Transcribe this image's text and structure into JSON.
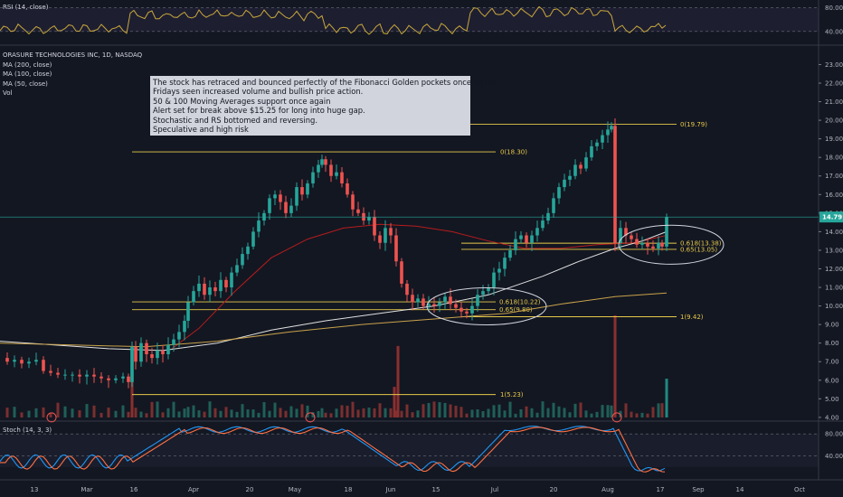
{
  "rsi_panel": {
    "label": "RSI (14, close)",
    "ticks": [
      80.0,
      40.0
    ]
  },
  "main_panel": {
    "title": "ORASURE TECHNOLOGIES INC, 1D, NASDAQ",
    "indicators": [
      "MA (200, close)",
      "MA (100, close)",
      "MA (50, close)",
      "Vol"
    ],
    "last_price_label": "14.79",
    "colors": {
      "up": "#26a69a",
      "down": "#ef5350",
      "level": "#e6c84a",
      "ma50": "#b71c1c",
      "ma100": "#e0e0e0",
      "ma200": "#c8a24a"
    }
  },
  "annotation": {
    "lines": [
      "The stock has retraced and bounced perfectly of the Fibonacci Golden pockets once again.",
      "Fridays seen increased volume and bullish price action.",
      "50 & 100 Moving Averages support once again",
      "Alert set for break above $15.25 for long into huge gap.",
      "Stochastic and RS bottomed and reversing.",
      "Speculative and high risk"
    ]
  },
  "stoch_panel": {
    "label": "Stoch (14, 3, 3)",
    "ticks": [
      80.0,
      40.0
    ]
  },
  "x_axis": {
    "labels": [
      "13",
      "Mar",
      "16",
      "Apr",
      "20",
      "May",
      "18",
      "Jun",
      "15",
      "Jul",
      "20",
      "Aug",
      "17",
      "Sep",
      "14",
      "Oct"
    ]
  },
  "chart_data": {
    "type": "candlestick",
    "title": "ORASURE TECHNOLOGIES INC, 1D, NASDAQ",
    "ylim": [
      3.8,
      23.8
    ],
    "y_ticks": [
      4.0,
      5.0,
      6.0,
      7.0,
      8.0,
      9.0,
      10.0,
      11.0,
      12.0,
      13.0,
      14.0,
      15.0,
      16.0,
      17.0,
      18.0,
      19.0,
      20.0,
      21.0,
      22.0,
      23.0
    ],
    "y_tick_labels": [
      "4.00",
      "5.00",
      "6.00",
      "7.00",
      "8.00",
      "9.00",
      "10.00",
      "11.00",
      "12.00",
      "13.00",
      "14.00",
      "15.00",
      "16.00",
      "17.00",
      "18.00",
      "19.00",
      "20.00",
      "21.00",
      "22.00",
      "23.00"
    ],
    "last_price": 14.79,
    "close_path": [
      [
        0,
        7.2
      ],
      [
        8,
        7.0
      ],
      [
        16,
        7.1
      ],
      [
        24,
        6.9
      ],
      [
        32,
        7.0
      ],
      [
        40,
        7.1
      ],
      [
        48,
        6.5
      ],
      [
        56,
        6.4
      ],
      [
        64,
        6.3
      ],
      [
        72,
        6.3
      ],
      [
        80,
        6.3
      ],
      [
        88,
        6.2
      ],
      [
        96,
        6.3
      ],
      [
        104,
        6.2
      ],
      [
        112,
        6.1
      ],
      [
        120,
        6.0
      ],
      [
        128,
        6.1
      ],
      [
        136,
        6.2
      ],
      [
        142,
        5.9
      ],
      [
        146,
        7.8
      ],
      [
        150,
        7.0
      ],
      [
        156,
        8.0
      ],
      [
        162,
        7.4
      ],
      [
        168,
        7.2
      ],
      [
        174,
        7.6
      ],
      [
        180,
        7.4
      ],
      [
        186,
        7.9
      ],
      [
        192,
        8.2
      ],
      [
        198,
        8.6
      ],
      [
        204,
        9.2
      ],
      [
        208,
        10.2
      ],
      [
        214,
        10.8
      ],
      [
        220,
        11.2
      ],
      [
        226,
        10.6
      ],
      [
        232,
        11.0
      ],
      [
        238,
        10.8
      ],
      [
        244,
        11.4
      ],
      [
        250,
        11.0
      ],
      [
        256,
        11.8
      ],
      [
        262,
        12.2
      ],
      [
        268,
        12.8
      ],
      [
        274,
        13.2
      ],
      [
        280,
        14.0
      ],
      [
        286,
        14.6
      ],
      [
        292,
        15.0
      ],
      [
        298,
        15.8
      ],
      [
        304,
        16.0
      ],
      [
        310,
        15.6
      ],
      [
        316,
        15.0
      ],
      [
        322,
        15.4
      ],
      [
        328,
        16.4
      ],
      [
        334,
        16.0
      ],
      [
        340,
        16.6
      ],
      [
        346,
        17.2
      ],
      [
        352,
        17.6
      ],
      [
        356,
        17.9
      ],
      [
        360,
        17.6
      ],
      [
        366,
        17.0
      ],
      [
        372,
        17.2
      ],
      [
        378,
        16.6
      ],
      [
        384,
        16.0
      ],
      [
        390,
        15.2
      ],
      [
        396,
        15.0
      ],
      [
        402,
        14.6
      ],
      [
        408,
        14.8
      ],
      [
        414,
        13.8
      ],
      [
        420,
        13.4
      ],
      [
        426,
        14.2
      ],
      [
        432,
        13.8
      ],
      [
        438,
        12.4
      ],
      [
        444,
        11.2
      ],
      [
        450,
        10.6
      ],
      [
        456,
        10.2
      ],
      [
        462,
        10.4
      ],
      [
        468,
        10.0
      ],
      [
        474,
        10.1
      ],
      [
        480,
        10.0
      ],
      [
        486,
        10.2
      ],
      [
        492,
        10.5
      ],
      [
        498,
        10.1
      ],
      [
        504,
        9.9
      ],
      [
        510,
        9.7
      ],
      [
        516,
        9.6
      ],
      [
        522,
        10.0
      ],
      [
        528,
        10.6
      ],
      [
        534,
        10.8
      ],
      [
        540,
        11.0
      ],
      [
        546,
        11.8
      ],
      [
        552,
        12.0
      ],
      [
        558,
        12.6
      ],
      [
        564,
        13.0
      ],
      [
        570,
        13.6
      ],
      [
        576,
        13.8
      ],
      [
        582,
        13.4
      ],
      [
        588,
        13.8
      ],
      [
        594,
        14.2
      ],
      [
        600,
        14.6
      ],
      [
        606,
        15.0
      ],
      [
        612,
        15.8
      ],
      [
        618,
        16.4
      ],
      [
        624,
        16.8
      ],
      [
        630,
        17.0
      ],
      [
        636,
        17.6
      ],
      [
        642,
        17.4
      ],
      [
        648,
        18.0
      ],
      [
        654,
        18.6
      ],
      [
        660,
        18.8
      ],
      [
        666,
        19.2
      ],
      [
        672,
        19.5
      ],
      [
        676,
        19.7
      ],
      [
        680,
        13.4
      ],
      [
        686,
        14.2
      ],
      [
        692,
        13.8
      ],
      [
        698,
        13.6
      ],
      [
        704,
        13.3
      ],
      [
        710,
        13.4
      ],
      [
        716,
        13.2
      ],
      [
        722,
        13.1
      ],
      [
        728,
        13.4
      ],
      [
        732,
        13.2
      ],
      [
        737,
        14.79
      ]
    ],
    "moving_averages": [
      {
        "name": "MA (50, close)",
        "points": [
          [
            190,
            7.7
          ],
          [
            220,
            8.8
          ],
          [
            260,
            10.8
          ],
          [
            300,
            12.6
          ],
          [
            340,
            13.6
          ],
          [
            380,
            14.2
          ],
          [
            420,
            14.4
          ],
          [
            460,
            14.3
          ],
          [
            500,
            14.0
          ],
          [
            540,
            13.5
          ],
          [
            580,
            13.1
          ],
          [
            620,
            13.1
          ],
          [
            660,
            13.3
          ],
          [
            700,
            13.4
          ],
          [
            737,
            13.8
          ]
        ]
      },
      {
        "name": "MA (100, close)",
        "points": [
          [
            0,
            8.1
          ],
          [
            60,
            7.9
          ],
          [
            120,
            7.7
          ],
          [
            180,
            7.6
          ],
          [
            240,
            8.0
          ],
          [
            300,
            8.7
          ],
          [
            360,
            9.2
          ],
          [
            420,
            9.6
          ],
          [
            480,
            10.0
          ],
          [
            540,
            10.6
          ],
          [
            600,
            11.6
          ],
          [
            640,
            12.4
          ],
          [
            680,
            13.1
          ],
          [
            710,
            13.5
          ],
          [
            737,
            14.0
          ]
        ]
      },
      {
        "name": "MA (200, close)",
        "points": [
          [
            0,
            8.0
          ],
          [
            80,
            7.9
          ],
          [
            160,
            7.8
          ],
          [
            240,
            8.1
          ],
          [
            320,
            8.6
          ],
          [
            400,
            9.0
          ],
          [
            480,
            9.3
          ],
          [
            560,
            9.6
          ],
          [
            620,
            10.1
          ],
          [
            680,
            10.5
          ],
          [
            737,
            10.7
          ]
        ]
      }
    ],
    "levels": [
      {
        "label": "0(18.30)",
        "value": 18.3,
        "x_start": 146
      },
      {
        "label": "0(19.79)",
        "value": 19.79,
        "x_start": 519
      },
      {
        "label": "0.618(10.22)",
        "value": 10.22,
        "x_start": 146
      },
      {
        "label": "0.65(9.80)",
        "value": 9.8,
        "x_start": 146
      },
      {
        "label": "1(9.42)",
        "value": 9.42,
        "x_start": 510
      },
      {
        "label": "1(5.23)",
        "value": 5.23,
        "x_start": 146
      },
      {
        "label": "0.618(13.38)",
        "value": 13.38,
        "x_start": 510
      },
      {
        "label": "0.65(13.05)",
        "value": 13.05,
        "x_start": 510
      }
    ],
    "highlight_ellipses": [
      {
        "x": 538,
        "value": 9.98,
        "rx": 66,
        "ry_value": 1.0
      },
      {
        "x": 742,
        "value": 13.3,
        "rx": 58,
        "ry_value": 1.05
      }
    ],
    "volume_spikes": [
      {
        "x": 146,
        "height": 3.0
      },
      {
        "x": 440,
        "height": 3.5
      },
      {
        "x": 436,
        "height": 1.5
      },
      {
        "x": 680,
        "height": 5.0
      },
      {
        "x": 737,
        "height": 1.9
      }
    ],
    "event_markers": [
      57,
      343,
      682
    ]
  }
}
